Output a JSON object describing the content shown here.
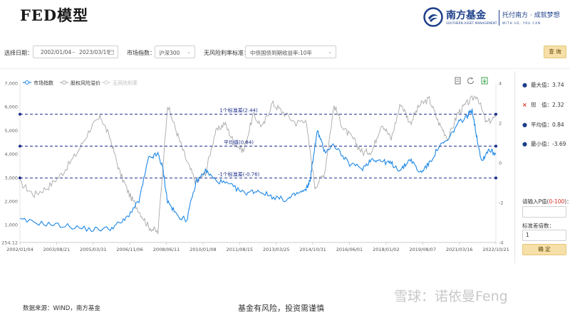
{
  "header": {
    "title": "FED模型",
    "brand_name": "南方基金",
    "brand_en": "SOUTHERN ASSET MANAGEMENT",
    "brand_slogan": "托付南方 · 成就梦想",
    "brand_slogan_en": "WITH US, YOU CAN"
  },
  "filters": {
    "date_label": "选择日期：",
    "date_start": "2002/01/04",
    "date_sep": "~",
    "date_end": "2023/03/19",
    "index_label": "市场指数：",
    "index_value": "沪深300",
    "rate_label": "无风险利率标准：",
    "rate_value": "中债国债到期收益率:10年",
    "query_label": "查 询"
  },
  "toolbar_icons": [
    "document-icon",
    "refresh-icon",
    "download-icon"
  ],
  "stats": {
    "max_label": "最大值：3.74",
    "current_label": "现　值：2.32",
    "mean_label": "平均值：0.84",
    "min_label": "最小值：-3.69"
  },
  "side": {
    "p_label": "请输入P值(",
    "p_range": "0-100",
    "p_label_end": ")：",
    "p_value": "",
    "sd_label": "标准差倍数：",
    "sd_value": "1",
    "confirm_label": "确 定"
  },
  "footer": {
    "source": "数据来源：WIND，南方基金",
    "risk": "基金有风险，投资需谨慎",
    "watermark": "雪球：诺依曼Feng"
  },
  "colors": {
    "index_line": "#1f88e5",
    "premium_line": "#a9a9a9",
    "riskfree_line": "#cfcfcf",
    "band_line": "#1d2f8a",
    "brand": "#1d3f8a",
    "button": "#f6dfa8"
  },
  "chart_data": {
    "type": "line",
    "legend": [
      "市场指数",
      "股权风险溢价",
      "无风险利率"
    ],
    "legend_position": "top-left",
    "x_ticks": [
      "2002/01/04",
      "2003/08/21",
      "2005/03/31",
      "2006/11/06",
      "2008/06/11",
      "2010/01/08",
      "2011/08/15",
      "2013/03/25",
      "2014/10/31",
      "2016/06/01",
      "2018/01/02",
      "2019/08/07",
      "2021/03/16",
      "2022/10/21"
    ],
    "y_left_ticks": [
      "7,000",
      "6,000",
      "5,000",
      "4,000",
      "3,000",
      "2,000",
      "1,000",
      "254.12"
    ],
    "y_left_range": [
      254.12,
      7000
    ],
    "y_right_ticks": [
      "4",
      "2",
      "0",
      "-2",
      "-4"
    ],
    "y_right_range": [
      -4,
      4
    ],
    "reference_lines": [
      {
        "label": "1个标准差(2.44)",
        "value": 2.44
      },
      {
        "label": "平均值(0.84)",
        "value": 0.84
      },
      {
        "label": "-1个标准差(-0.76)",
        "value": -0.76
      }
    ],
    "series": [
      {
        "name": "市场指数",
        "axis": "left",
        "x": [
          0,
          0.05,
          0.1,
          0.15,
          0.19,
          0.22,
          0.25,
          0.27,
          0.29,
          0.3,
          0.31,
          0.33,
          0.35,
          0.37,
          0.39,
          0.41,
          0.44,
          0.47,
          0.5,
          0.53,
          0.56,
          0.58,
          0.6,
          0.61,
          0.615,
          0.625,
          0.64,
          0.66,
          0.69,
          0.72,
          0.74,
          0.76,
          0.78,
          0.8,
          0.82,
          0.84,
          0.86,
          0.88,
          0.9,
          0.92,
          0.94,
          0.95,
          0.96,
          0.97,
          0.985,
          1.0
        ],
        "values": [
          1200,
          1050,
          950,
          800,
          850,
          1200,
          2000,
          3800,
          4000,
          3400,
          2000,
          1400,
          1200,
          2800,
          3300,
          2900,
          2700,
          2350,
          2450,
          2200,
          2050,
          2300,
          2450,
          2900,
          3700,
          5000,
          4100,
          4400,
          3600,
          3400,
          3800,
          3700,
          3600,
          3300,
          3800,
          3200,
          3600,
          4300,
          4600,
          5300,
          5600,
          5900,
          4700,
          3700,
          4200,
          4000
        ]
      },
      {
        "name": "股权风险溢价",
        "axis": "right",
        "x": [
          0,
          0.03,
          0.06,
          0.09,
          0.12,
          0.15,
          0.17,
          0.19,
          0.21,
          0.23,
          0.25,
          0.27,
          0.29,
          0.31,
          0.33,
          0.35,
          0.37,
          0.39,
          0.41,
          0.43,
          0.45,
          0.47,
          0.49,
          0.51,
          0.53,
          0.55,
          0.58,
          0.6,
          0.62,
          0.64,
          0.66,
          0.68,
          0.7,
          0.72,
          0.74,
          0.76,
          0.78,
          0.8,
          0.82,
          0.84,
          0.86,
          0.88,
          0.9,
          0.92,
          0.94,
          0.96,
          0.98,
          1.0
        ],
        "values": [
          -1.0,
          -1.6,
          -1.2,
          -0.5,
          0.5,
          1.8,
          2.3,
          1.2,
          -0.5,
          -1.6,
          -2.4,
          -3.2,
          -3.5,
          2.9,
          1.5,
          0.1,
          -1.0,
          -0.5,
          1.5,
          2.0,
          1.0,
          0.6,
          2.4,
          1.8,
          3.0,
          2.6,
          2.0,
          2.2,
          -1.2,
          -0.5,
          2.9,
          1.7,
          1.2,
          0.5,
          0.6,
          2.0,
          1.2,
          3.0,
          2.0,
          2.9,
          3.2,
          2.0,
          1.2,
          2.5,
          3.0,
          3.4,
          2.0,
          2.32
        ]
      }
    ]
  }
}
